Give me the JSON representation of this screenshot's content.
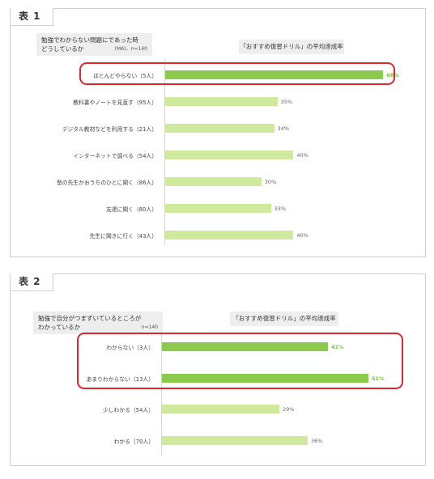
{
  "colors": {
    "bar_light": "#cfea9c",
    "bar_dark": "#8cca4e",
    "highlight": "#e0252b"
  },
  "chart_data": [
    {
      "type": "bar",
      "orientation": "horizontal",
      "tab": "表 1",
      "question": [
        "勉強でわからない問題にであった時",
        "どうしているか"
      ],
      "note": "(MA)、n=140",
      "header": "「おすすめ復習ドリル」の平均達成率",
      "categories": [
        "ほとんどやらない（5人）",
        "教科書やノートを見直す（95人）",
        "デジタル教材などを利用する（21人）",
        "インターネットで調べる（54人）",
        "塾の先生かおうちのひとに聞く（86人）",
        "友達に聞く（80人）",
        "先生に聞きに行く（43人）"
      ],
      "values": [
        68,
        35,
        34,
        40,
        30,
        33,
        40
      ],
      "value_labels": [
        "68%",
        "35%",
        "34%",
        "40%",
        "30%",
        "33%",
        "40%"
      ],
      "highlighted": [
        0
      ],
      "unit": "%"
    },
    {
      "type": "bar",
      "orientation": "horizontal",
      "tab": "表 2",
      "question": [
        "勉強で自分がつまずいているところが",
        "わかっているか"
      ],
      "note": "n=140",
      "header": "「おすすめ復習ドリル」の平均達成率",
      "categories": [
        "わからない（3人）",
        "あまりわからない（13人）",
        "少しわかる（54人）",
        "わかる（70人）"
      ],
      "values": [
        41,
        51,
        29,
        36
      ],
      "value_labels": [
        "41%",
        "51%",
        "29%",
        "36%"
      ],
      "highlighted": [
        0,
        1
      ],
      "unit": "%"
    }
  ]
}
